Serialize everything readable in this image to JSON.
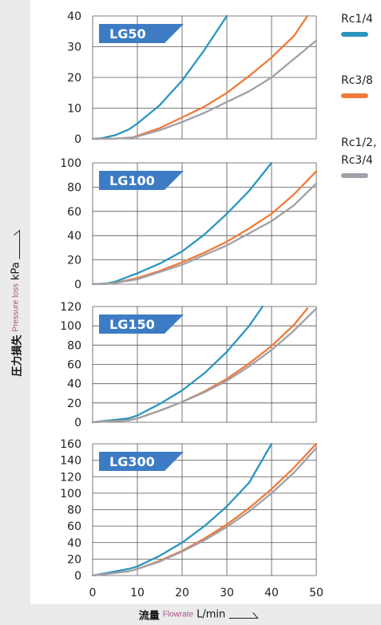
{
  "chart_data": [
    {
      "type": "line",
      "title": "LG50",
      "xlim": [
        0,
        50
      ],
      "ylim": [
        0,
        40
      ],
      "yticks": [
        0,
        10,
        20,
        30,
        40
      ],
      "series": [
        {
          "name": "Rc1/4",
          "color": "#2b95c0",
          "x": [
            0,
            2,
            5,
            8,
            10,
            15,
            20,
            25,
            30
          ],
          "y": [
            0,
            0.2,
            1.2,
            3,
            5,
            11,
            19,
            29,
            40
          ]
        },
        {
          "name": "Rc3/8",
          "color": "#f07a3a",
          "x": [
            0,
            5,
            9,
            15,
            20,
            25,
            30,
            35,
            40,
            45,
            48
          ],
          "y": [
            0,
            0.1,
            0.5,
            3.5,
            7,
            10.5,
            15,
            20.5,
            26.5,
            33.5,
            40
          ]
        },
        {
          "name": "Rc1/2, Rc3/4",
          "color": "#a0a0a8",
          "x": [
            0,
            5,
            9,
            15,
            20,
            25,
            30,
            35,
            40,
            45,
            50
          ],
          "y": [
            0,
            0.1,
            0.4,
            2.8,
            5.5,
            8.5,
            12,
            15.5,
            20,
            26,
            32
          ]
        }
      ]
    },
    {
      "type": "line",
      "title": "LG100",
      "xlim": [
        0,
        50
      ],
      "ylim": [
        0,
        100
      ],
      "yticks": [
        0,
        20,
        40,
        60,
        80,
        100
      ],
      "series": [
        {
          "name": "Rc1/4",
          "color": "#2b95c0",
          "x": [
            0,
            3,
            5,
            10,
            15,
            20,
            25,
            30,
            35,
            40
          ],
          "y": [
            0,
            0.5,
            2,
            9,
            17,
            27,
            41,
            58,
            77,
            100
          ]
        },
        {
          "name": "Rc3/8",
          "color": "#f07a3a",
          "x": [
            0,
            3,
            5,
            10,
            15,
            20,
            25,
            30,
            35,
            40,
            45,
            50
          ],
          "y": [
            0,
            0.2,
            1,
            5,
            11,
            18,
            26,
            35,
            46,
            58,
            74,
            93
          ]
        },
        {
          "name": "Rc1/2, Rc3/4",
          "color": "#a0a0a8",
          "x": [
            0,
            3,
            5,
            10,
            15,
            20,
            25,
            30,
            35,
            40,
            45,
            50
          ],
          "y": [
            0,
            0.2,
            1,
            4,
            10,
            16,
            24,
            32,
            42,
            52,
            65,
            83
          ]
        }
      ]
    },
    {
      "type": "line",
      "title": "LG150",
      "xlim": [
        0,
        50
      ],
      "ylim": [
        0,
        120
      ],
      "yticks": [
        0,
        20,
        40,
        60,
        80,
        100,
        120
      ],
      "series": [
        {
          "name": "Rc1/4",
          "color": "#2b95c0",
          "x": [
            0,
            8,
            10,
            15,
            20,
            25,
            30,
            35,
            38
          ],
          "y": [
            0,
            4,
            7,
            19,
            33,
            51,
            73,
            100,
            120
          ]
        },
        {
          "name": "Rc3/8",
          "color": "#f07a3a",
          "x": [
            0,
            8,
            10,
            15,
            20,
            25,
            30,
            35,
            40,
            45,
            48
          ],
          "y": [
            0,
            2,
            4,
            12,
            21,
            32,
            45,
            61,
            79,
            101,
            118
          ]
        },
        {
          "name": "Rc1/2, Rc3/4",
          "color": "#a0a0a8",
          "x": [
            0,
            8,
            10,
            15,
            20,
            25,
            30,
            35,
            40,
            45,
            50
          ],
          "y": [
            0,
            2,
            4,
            12,
            21,
            31,
            43,
            58,
            75,
            95,
            118
          ]
        }
      ]
    },
    {
      "type": "line",
      "title": "LG300",
      "xlim": [
        0,
        50
      ],
      "ylim": [
        0,
        160
      ],
      "yticks": [
        0,
        20,
        40,
        60,
        80,
        100,
        120,
        140,
        160
      ],
      "series": [
        {
          "name": "Rc1/4",
          "color": "#2b95c0",
          "x": [
            0,
            8,
            10,
            15,
            20,
            25,
            30,
            35,
            40
          ],
          "y": [
            0,
            8,
            11,
            24,
            40,
            60,
            84,
            113,
            160
          ]
        },
        {
          "name": "Rc3/8",
          "color": "#f07a3a",
          "x": [
            0,
            8,
            10,
            15,
            20,
            25,
            30,
            35,
            40,
            45,
            50
          ],
          "y": [
            0,
            5,
            8,
            18,
            30,
            45,
            62,
            82,
            105,
            131,
            160
          ]
        },
        {
          "name": "Rc1/2, Rc3/4",
          "color": "#a0a0a8",
          "x": [
            0,
            8,
            10,
            15,
            20,
            25,
            30,
            35,
            40,
            45,
            50
          ],
          "y": [
            0,
            5,
            8,
            17,
            29,
            43,
            59,
            78,
            100,
            125,
            155
          ]
        }
      ]
    }
  ],
  "x_ticks": [
    0,
    10,
    20,
    30,
    40,
    50
  ],
  "xlabel": {
    "cn": "流量",
    "en": "Flowrate",
    "unit": "L/min"
  },
  "ylabel": {
    "cn": "圧力損失",
    "en": "Pressure loss",
    "unit": "kPa"
  },
  "legend": [
    {
      "label_lines": [
        "Rc1/4"
      ],
      "color": "#2b95c0"
    },
    {
      "label_lines": [
        "Rc3/8"
      ],
      "color": "#f07a3a"
    },
    {
      "label_lines": [
        "Rc1/2,",
        "Rc3/4"
      ],
      "color": "#a0a0a8"
    }
  ],
  "badge_color": "#3d7cc4"
}
